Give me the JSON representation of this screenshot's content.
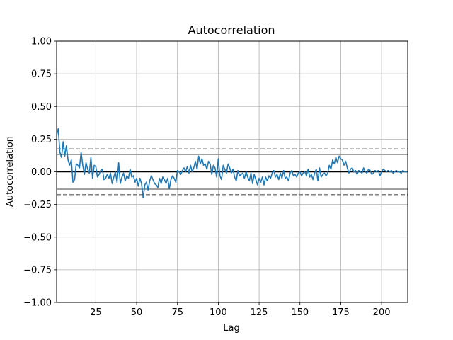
{
  "chart_data": {
    "type": "line",
    "title": "Autocorrelation",
    "xlabel": "Lag",
    "ylabel": "Autocorrelation",
    "xlim": [
      1,
      216
    ],
    "ylim": [
      -1.0,
      1.0
    ],
    "xticks": [
      25,
      50,
      75,
      100,
      125,
      150,
      175,
      200
    ],
    "yticks": [
      -1.0,
      -0.75,
      -0.5,
      -0.25,
      0.0,
      0.25,
      0.5,
      0.75,
      1.0
    ],
    "ytick_labels": [
      "−1.00",
      "−0.75",
      "−0.50",
      "−0.25",
      "0.00",
      "0.25",
      "0.50",
      "0.75",
      "1.00"
    ],
    "grid": true,
    "confidence_bands": {
      "z99": 0.175,
      "z95": 0.133
    },
    "series": [
      {
        "color": "#1f77b4",
        "start_lag": 1,
        "values": [
          0.28,
          0.33,
          0.15,
          0.11,
          0.23,
          0.12,
          0.2,
          0.09,
          0.05,
          0.09,
          -0.08,
          -0.06,
          0.06,
          0.05,
          0.03,
          0.15,
          0.05,
          -0.02,
          0.07,
          0.02,
          -0.01,
          0.11,
          -0.05,
          0.05,
          0.04,
          -0.04,
          -0.02,
          0.01,
          0.02,
          -0.06,
          -0.05,
          -0.02,
          -0.05,
          -0.01,
          -0.09,
          -0.04,
          0.0,
          -0.08,
          0.07,
          -0.09,
          -0.04,
          -0.01,
          -0.07,
          -0.03,
          -0.05,
          0.02,
          -0.04,
          -0.03,
          -0.08,
          -0.05,
          -0.11,
          -0.05,
          -0.09,
          -0.2,
          -0.1,
          -0.08,
          -0.14,
          -0.07,
          -0.03,
          -0.06,
          -0.09,
          -0.1,
          -0.12,
          -0.05,
          -0.09,
          -0.04,
          -0.06,
          -0.09,
          -0.05,
          -0.13,
          -0.06,
          -0.03,
          -0.05,
          -0.08,
          0.01,
          0.0,
          -0.02,
          0.01,
          0.03,
          0.0,
          0.04,
          -0.01,
          0.05,
          0.0,
          0.03,
          0.08,
          0.02,
          0.12,
          0.06,
          0.1,
          0.05,
          0.06,
          0.02,
          0.08,
          0.06,
          -0.02,
          0.05,
          0.03,
          -0.04,
          0.1,
          -0.03,
          -0.06,
          0.05,
          0.02,
          -0.01,
          0.06,
          0.03,
          -0.01,
          0.02,
          -0.04,
          -0.07,
          0.01,
          -0.03,
          -0.02,
          -0.01,
          -0.05,
          0.0,
          -0.04,
          -0.07,
          -0.01,
          -0.09,
          -0.02,
          -0.06,
          -0.1,
          -0.05,
          -0.08,
          -0.04,
          -0.1,
          -0.04,
          -0.07,
          -0.03,
          -0.05,
          -0.01,
          0.01,
          -0.04,
          -0.02,
          -0.06,
          -0.01,
          -0.05,
          0.01,
          -0.05,
          -0.04,
          -0.07,
          -0.01,
          0.01,
          -0.03,
          -0.02,
          -0.04,
          -0.01,
          0.0,
          -0.03,
          -0.01,
          0.0,
          -0.03,
          0.02,
          -0.04,
          -0.02,
          -0.06,
          -0.01,
          0.02,
          -0.07,
          0.03,
          -0.04,
          -0.02,
          -0.01,
          -0.03,
          -0.01,
          0.05,
          0.02,
          0.09,
          0.06,
          0.11,
          0.07,
          0.12,
          0.1,
          0.09,
          0.05,
          0.08,
          0.03,
          -0.01,
          0.02,
          0.03,
          0.0,
          0.01,
          -0.02,
          0.01,
          0.0,
          -0.01,
          0.03,
          0.0,
          -0.01,
          0.02,
          0.01,
          -0.02,
          -0.01,
          0.01,
          0.0,
          0.01,
          -0.03,
          0.0,
          0.02,
          0.01,
          0.0,
          0.01,
          0.0,
          0.01,
          -0.01,
          0.0,
          0.01,
          0.0,
          0.0,
          -0.01,
          0.01,
          0.0,
          0.0,
          0.0
        ]
      }
    ]
  }
}
